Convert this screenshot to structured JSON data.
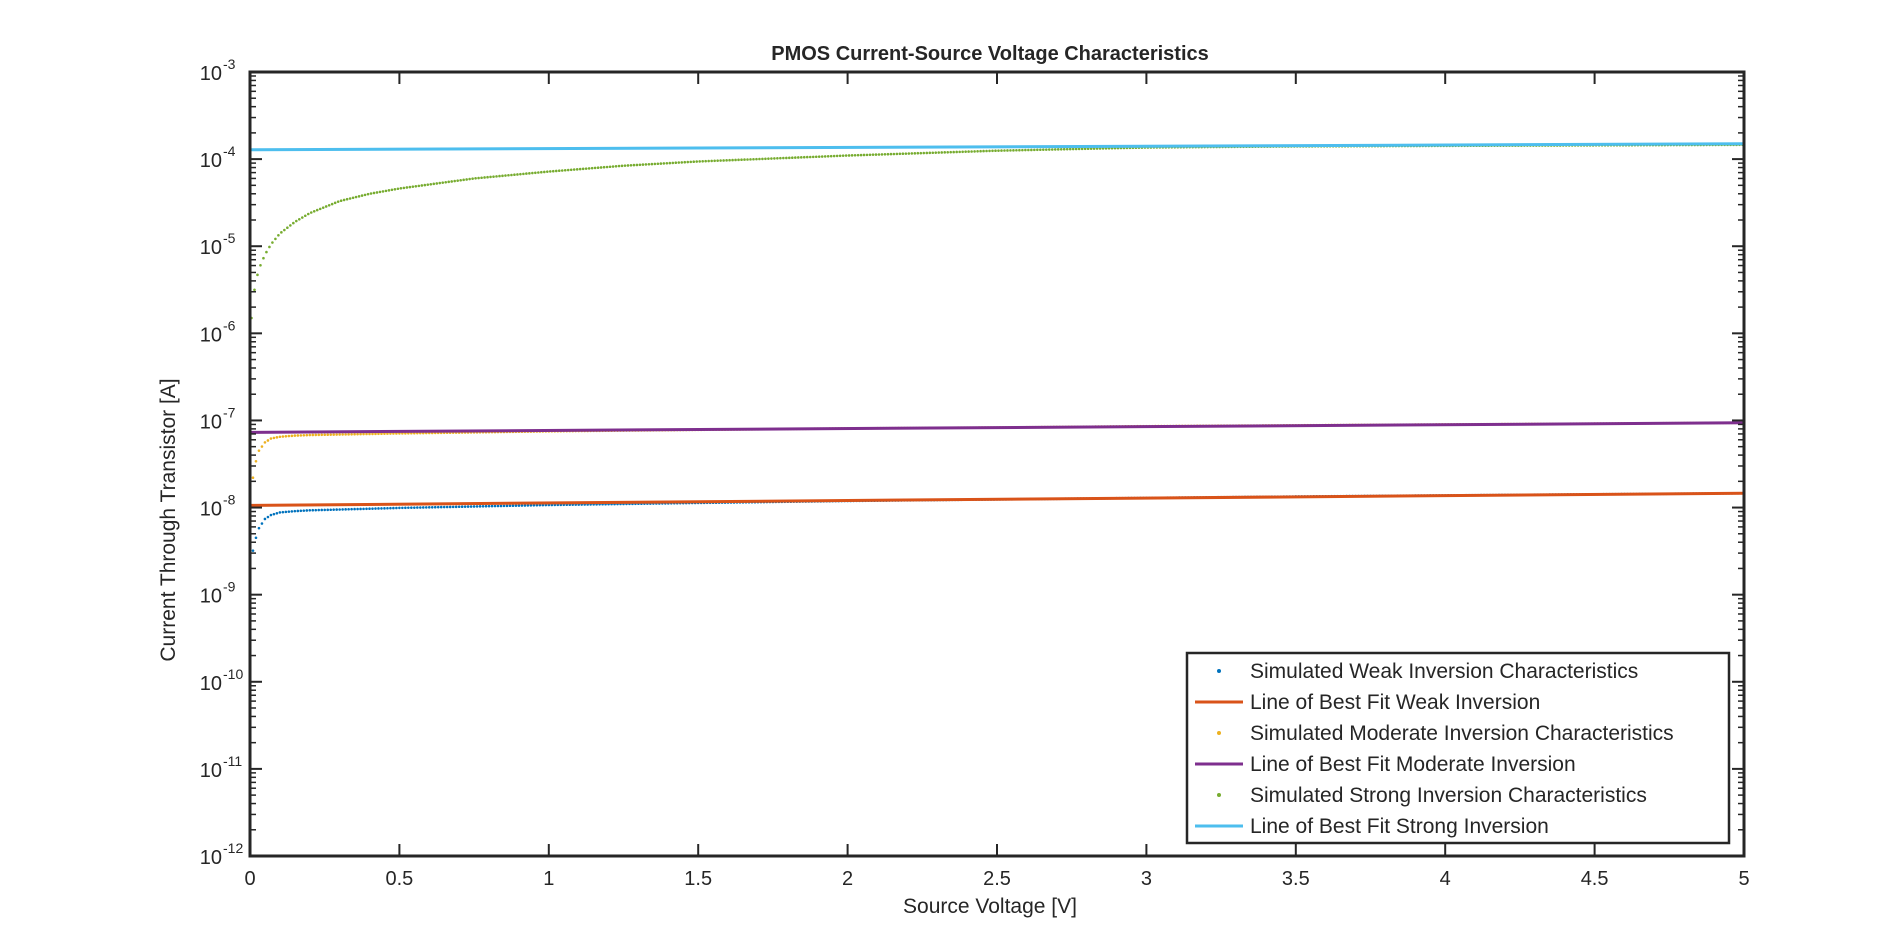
{
  "chart_data": {
    "type": "scatter",
    "title": "PMOS Current-Source Voltage Characteristics",
    "xlabel": "Source Voltage [V]",
    "ylabel": "Current Through Transistor [A]",
    "xlim": [
      0,
      5
    ],
    "ylim": [
      1e-12,
      0.001
    ],
    "yscale": "log",
    "grid": false,
    "legend_position": "bottom-right",
    "x_ticks": [
      "0",
      "0.5",
      "1",
      "1.5",
      "2",
      "2.5",
      "3",
      "3.5",
      "4",
      "4.5",
      "5"
    ],
    "y_ticks": [
      {
        "base": "10",
        "exp": "-12"
      },
      {
        "base": "10",
        "exp": "-11"
      },
      {
        "base": "10",
        "exp": "-10"
      },
      {
        "base": "10",
        "exp": "-9"
      },
      {
        "base": "10",
        "exp": "-8"
      },
      {
        "base": "10",
        "exp": "-7"
      },
      {
        "base": "10",
        "exp": "-6"
      },
      {
        "base": "10",
        "exp": "-5"
      },
      {
        "base": "10",
        "exp": "-4"
      },
      {
        "base": "10",
        "exp": "-3"
      }
    ],
    "series": [
      {
        "name": "Simulated Weak Inversion Characteristics",
        "style": "dots",
        "color": "#0072BD",
        "x": [
          0,
          0.01,
          0.02,
          0.03,
          0.05,
          0.07,
          0.1,
          0.15,
          0.2,
          0.3,
          0.5,
          1,
          1.5,
          2,
          2.5,
          3,
          3.5,
          4,
          4.5,
          5
        ],
        "y": [
          2e-09,
          3.2e-09,
          4.5e-09,
          5.8e-09,
          7.4e-09,
          8.2e-09,
          8.8e-09,
          9.1e-09,
          9.3e-09,
          9.5e-09,
          9.9e-09,
          1.07e-08,
          1.13e-08,
          1.19e-08,
          1.24e-08,
          1.29e-08,
          1.34e-08,
          1.38e-08,
          1.42e-08,
          1.46e-08
        ]
      },
      {
        "name": "Line of Best Fit Weak Inversion",
        "style": "line",
        "color": "#D95319",
        "x": [
          0,
          5
        ],
        "y": [
          1.06e-08,
          1.46e-08
        ]
      },
      {
        "name": "Simulated Moderate Inversion Characteristics",
        "style": "dots",
        "color": "#EDB120",
        "x": [
          0,
          0.01,
          0.02,
          0.03,
          0.05,
          0.07,
          0.1,
          0.15,
          0.2,
          0.3,
          0.5,
          1,
          1.5,
          2,
          2.5,
          3,
          3.5,
          4,
          4.5,
          5
        ],
        "y": [
          1.2e-08,
          2.2e-08,
          3.4e-08,
          4.5e-08,
          5.6e-08,
          6.2e-08,
          6.5e-08,
          6.7e-08,
          6.8e-08,
          6.9e-08,
          7.1e-08,
          7.5e-08,
          7.8e-08,
          8.1e-08,
          8.3e-08,
          8.6e-08,
          8.8e-08,
          9e-08,
          9.2e-08,
          9.4e-08
        ]
      },
      {
        "name": "Line of Best Fit Moderate Inversion",
        "style": "line",
        "color": "#7E2F8E",
        "x": [
          0,
          5
        ],
        "y": [
          7.3e-08,
          9.4e-08
        ]
      },
      {
        "name": "Simulated Strong Inversion Characteristics",
        "style": "dots",
        "color": "#77AC30",
        "x": [
          0.005,
          0.01,
          0.02,
          0.03,
          0.05,
          0.07,
          0.1,
          0.15,
          0.2,
          0.3,
          0.4,
          0.5,
          0.75,
          1,
          1.25,
          1.5,
          2,
          2.5,
          3,
          3.5,
          4,
          4.5,
          5
        ],
        "y": [
          1.5e-06,
          2.5e-06,
          4e-06,
          5.5e-06,
          8e-06,
          1.05e-05,
          1.4e-05,
          1.9e-05,
          2.4e-05,
          3.3e-05,
          4e-05,
          4.6e-05,
          6e-05,
          7.2e-05,
          8.4e-05,
          9.4e-05,
          0.00011,
          0.000125,
          0.000136,
          0.00014,
          0.000142,
          0.000144,
          0.000146
        ]
      },
      {
        "name": "Line of Best Fit Strong Inversion",
        "style": "line",
        "color": "#4DBEEE",
        "x": [
          0,
          5
        ],
        "y": [
          0.000128,
          0.00015
        ]
      }
    ]
  }
}
